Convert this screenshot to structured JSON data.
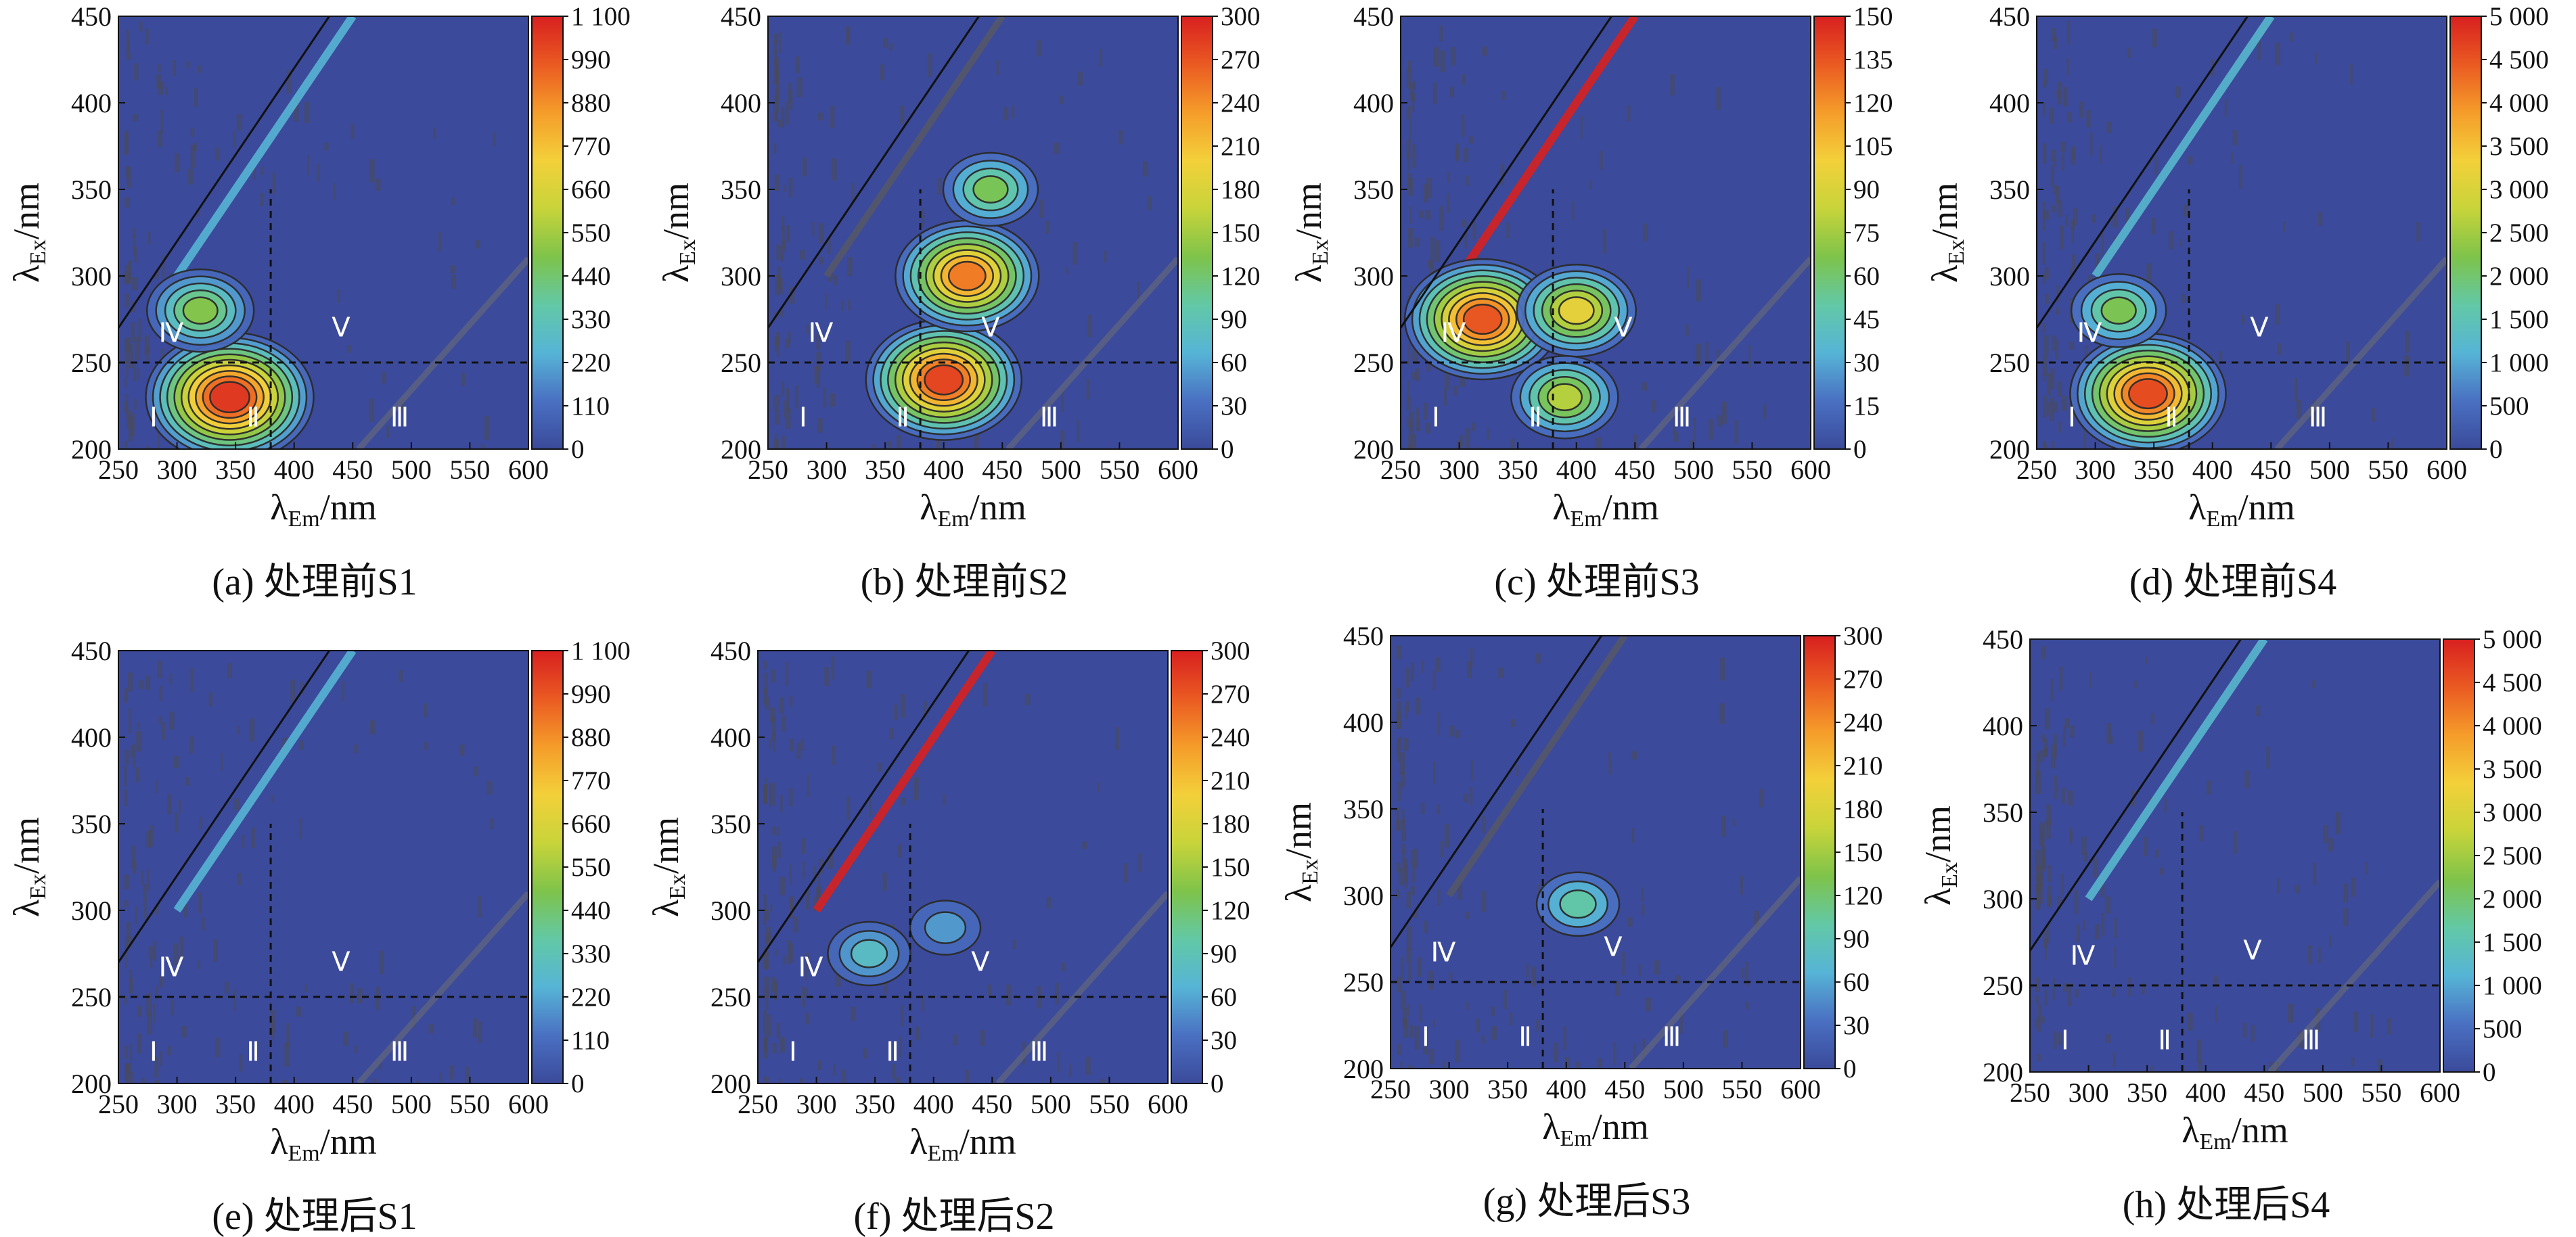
{
  "figure": {
    "xlabel": "λEm/nm",
    "ylabel": "λEx/nm",
    "x_ticks": [
      "250",
      "300",
      "350",
      "400",
      "450",
      "500",
      "550",
      "600"
    ],
    "y_ticks": [
      "200",
      "250",
      "300",
      "350",
      "400",
      "450"
    ],
    "region_labels": [
      "Ⅰ",
      "Ⅱ",
      "Ⅲ",
      "Ⅳ",
      "Ⅴ"
    ],
    "colormap": [
      "#3b4a9a",
      "#4a70c2",
      "#56b4d6",
      "#62c8a6",
      "#7ec34a",
      "#c8d43a",
      "#f3d03a",
      "#f59c2a",
      "#ea5a22",
      "#d82020"
    ]
  },
  "chart_data": [
    {
      "type": "heatmap",
      "caption": "(a) 处理前S1",
      "xlim": [
        250,
        600
      ],
      "ylim": [
        200,
        450
      ],
      "x_ticks": [
        "250",
        "300",
        "350",
        "400",
        "450",
        "500",
        "550",
        "600"
      ],
      "y_ticks": [
        "200",
        "250",
        "300",
        "350",
        "400",
        "450"
      ],
      "colorbar": {
        "min": 0,
        "max": 1100,
        "ticks": [
          "0",
          "110",
          "220",
          "330",
          "440",
          "550",
          "660",
          "770",
          "880",
          "990",
          "1 100"
        ]
      },
      "peaks": [
        {
          "x": 345,
          "y": 230,
          "intensity": 1050
        },
        {
          "x": 320,
          "y": 280,
          "intensity": 500
        }
      ],
      "rayleigh_scatter_intensity": 250
    },
    {
      "type": "heatmap",
      "caption": "(b) 处理前S2",
      "xlim": [
        250,
        600
      ],
      "ylim": [
        200,
        450
      ],
      "x_ticks": [
        "250",
        "300",
        "350",
        "400",
        "450",
        "500",
        "550",
        "600"
      ],
      "y_ticks": [
        "200",
        "250",
        "300",
        "350",
        "400",
        "450"
      ],
      "colorbar": {
        "min": 0,
        "max": 300,
        "ticks": [
          "0",
          "30",
          "60",
          "90",
          "120",
          "150",
          "180",
          "210",
          "240",
          "270",
          "300"
        ]
      },
      "peaks": [
        {
          "x": 400,
          "y": 240,
          "intensity": 280
        },
        {
          "x": 420,
          "y": 300,
          "intensity": 250
        },
        {
          "x": 440,
          "y": 350,
          "intensity": 130
        }
      ],
      "rayleigh_scatter_intensity": 0
    },
    {
      "type": "heatmap",
      "caption": "(c) 处理前S3",
      "xlim": [
        250,
        600
      ],
      "ylim": [
        200,
        450
      ],
      "x_ticks": [
        "250",
        "300",
        "350",
        "400",
        "450",
        "500",
        "550",
        "600"
      ],
      "y_ticks": [
        "200",
        "250",
        "300",
        "350",
        "400",
        "450"
      ],
      "colorbar": {
        "min": 0,
        "max": 150,
        "ticks": [
          "0",
          "15",
          "30",
          "45",
          "60",
          "75",
          "90",
          "105",
          "120",
          "135",
          "150"
        ]
      },
      "peaks": [
        {
          "x": 320,
          "y": 275,
          "intensity": 135
        },
        {
          "x": 400,
          "y": 280,
          "intensity": 95
        },
        {
          "x": 390,
          "y": 230,
          "intensity": 80
        }
      ],
      "rayleigh_scatter_intensity": 150
    },
    {
      "type": "heatmap",
      "caption": "(d) 处理前S4",
      "xlim": [
        250,
        600
      ],
      "ylim": [
        200,
        450
      ],
      "x_ticks": [
        "250",
        "300",
        "350",
        "400",
        "450",
        "500",
        "550",
        "600"
      ],
      "y_ticks": [
        "200",
        "250",
        "300",
        "350",
        "400",
        "450"
      ],
      "colorbar": {
        "min": 0,
        "max": 5000,
        "ticks": [
          "0",
          "500",
          "1 000",
          "1 500",
          "2 000",
          "2 500",
          "3 000",
          "3 500",
          "4 000",
          "4 500",
          "5 000"
        ]
      },
      "peaks": [
        {
          "x": 345,
          "y": 232,
          "intensity": 4600
        },
        {
          "x": 320,
          "y": 280,
          "intensity": 2200
        }
      ],
      "rayleigh_scatter_intensity": 1200
    },
    {
      "type": "heatmap",
      "caption": "(e) 处理后S1",
      "xlim": [
        250,
        600
      ],
      "ylim": [
        200,
        450
      ],
      "x_ticks": [
        "250",
        "300",
        "350",
        "400",
        "450",
        "500",
        "550",
        "600"
      ],
      "y_ticks": [
        "200",
        "250",
        "300",
        "350",
        "400",
        "450"
      ],
      "colorbar": {
        "min": 0,
        "max": 1100,
        "ticks": [
          "0",
          "110",
          "220",
          "330",
          "440",
          "550",
          "660",
          "770",
          "880",
          "990",
          "1 100"
        ]
      },
      "peaks": [],
      "rayleigh_scatter_intensity": 250
    },
    {
      "type": "heatmap",
      "caption": "(f) 处理后S2",
      "xlim": [
        250,
        600
      ],
      "ylim": [
        200,
        450
      ],
      "x_ticks": [
        "250",
        "300",
        "350",
        "400",
        "450",
        "500",
        "550",
        "600"
      ],
      "y_ticks": [
        "200",
        "250",
        "300",
        "350",
        "400",
        "450"
      ],
      "colorbar": {
        "min": 0,
        "max": 300,
        "ticks": [
          "0",
          "30",
          "60",
          "90",
          "120",
          "150",
          "180",
          "210",
          "240",
          "270",
          "300"
        ]
      },
      "peaks": [
        {
          "x": 345,
          "y": 275,
          "intensity": 80
        },
        {
          "x": 410,
          "y": 290,
          "intensity": 55
        }
      ],
      "rayleigh_scatter_intensity": 300
    },
    {
      "type": "heatmap",
      "caption": "(g) 处理后S3",
      "xlim": [
        250,
        600
      ],
      "ylim": [
        200,
        450
      ],
      "x_ticks": [
        "250",
        "300",
        "350",
        "400",
        "450",
        "500",
        "550",
        "600"
      ],
      "y_ticks": [
        "200",
        "250",
        "300",
        "350",
        "400",
        "450"
      ],
      "colorbar": {
        "min": 0,
        "max": 300,
        "ticks": [
          "0",
          "30",
          "60",
          "90",
          "120",
          "150",
          "180",
          "210",
          "240",
          "270",
          "300"
        ]
      },
      "peaks": [
        {
          "x": 410,
          "y": 295,
          "intensity": 100
        }
      ],
      "rayleigh_scatter_intensity": 0
    },
    {
      "type": "heatmap",
      "caption": "(h) 处理后S4",
      "xlim": [
        250,
        600
      ],
      "ylim": [
        200,
        450
      ],
      "x_ticks": [
        "250",
        "300",
        "350",
        "400",
        "450",
        "500",
        "550",
        "600"
      ],
      "y_ticks": [
        "200",
        "250",
        "300",
        "350",
        "400",
        "450"
      ],
      "colorbar": {
        "min": 0,
        "max": 5000,
        "ticks": [
          "0",
          "500",
          "1 000",
          "1 500",
          "2 000",
          "2 500",
          "3 000",
          "3 500",
          "4 000",
          "4 500",
          "5 000"
        ]
      },
      "peaks": [],
      "rayleigh_scatter_intensity": 1200
    }
  ]
}
